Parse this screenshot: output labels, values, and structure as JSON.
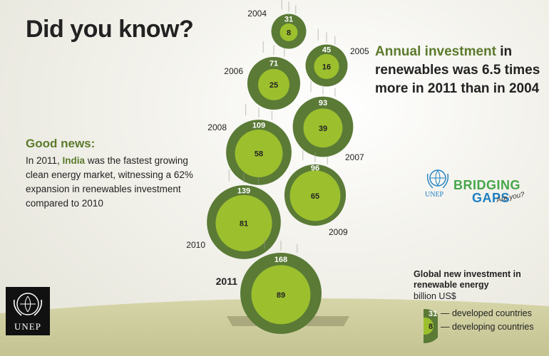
{
  "title": "Did you know?",
  "headline": {
    "accent": "Annual investment",
    "rest": " in renewables was 6.5 times more in 2011 than in 2004"
  },
  "good_news": {
    "title": "Good news:",
    "before": "In 2011, ",
    "highlight": "India",
    "after": " was the fastest growing clean energy market, witnessing a 62% expansion in renewables investment compared to 2010"
  },
  "legend": {
    "title": "Global new investment in renewable energy",
    "unit": "billion US$",
    "developed_label": "— developed countries",
    "developing_label": "— developing countries",
    "sample_developed": "31",
    "sample_developing": "8"
  },
  "logos": {
    "unep": "UNEP",
    "unep_small": "UNEP",
    "bridging_line1": "BRIDGING",
    "bridging_line2": "GAPS",
    "bridging_line3": "Are you?"
  },
  "colors": {
    "outer": "#5a7a36",
    "inner": "#9cbf2e",
    "ground": "#cdcc9d",
    "text_dark": "#222222",
    "accent": "#5c7a2c"
  },
  "chart_data": {
    "type": "bubble",
    "title": "Global new investment in renewable energy",
    "unit": "billion US$",
    "series": [
      {
        "name": "developed countries",
        "values": [
          31,
          45,
          71,
          93,
          109,
          96,
          139,
          168
        ]
      },
      {
        "name": "developing countries",
        "values": [
          8,
          16,
          25,
          39,
          58,
          65,
          81,
          89
        ]
      }
    ],
    "categories": [
      "2004",
      "2005",
      "2006",
      "2007",
      "2008",
      "2009",
      "2010",
      "2011"
    ],
    "highlight_category": "2011"
  }
}
